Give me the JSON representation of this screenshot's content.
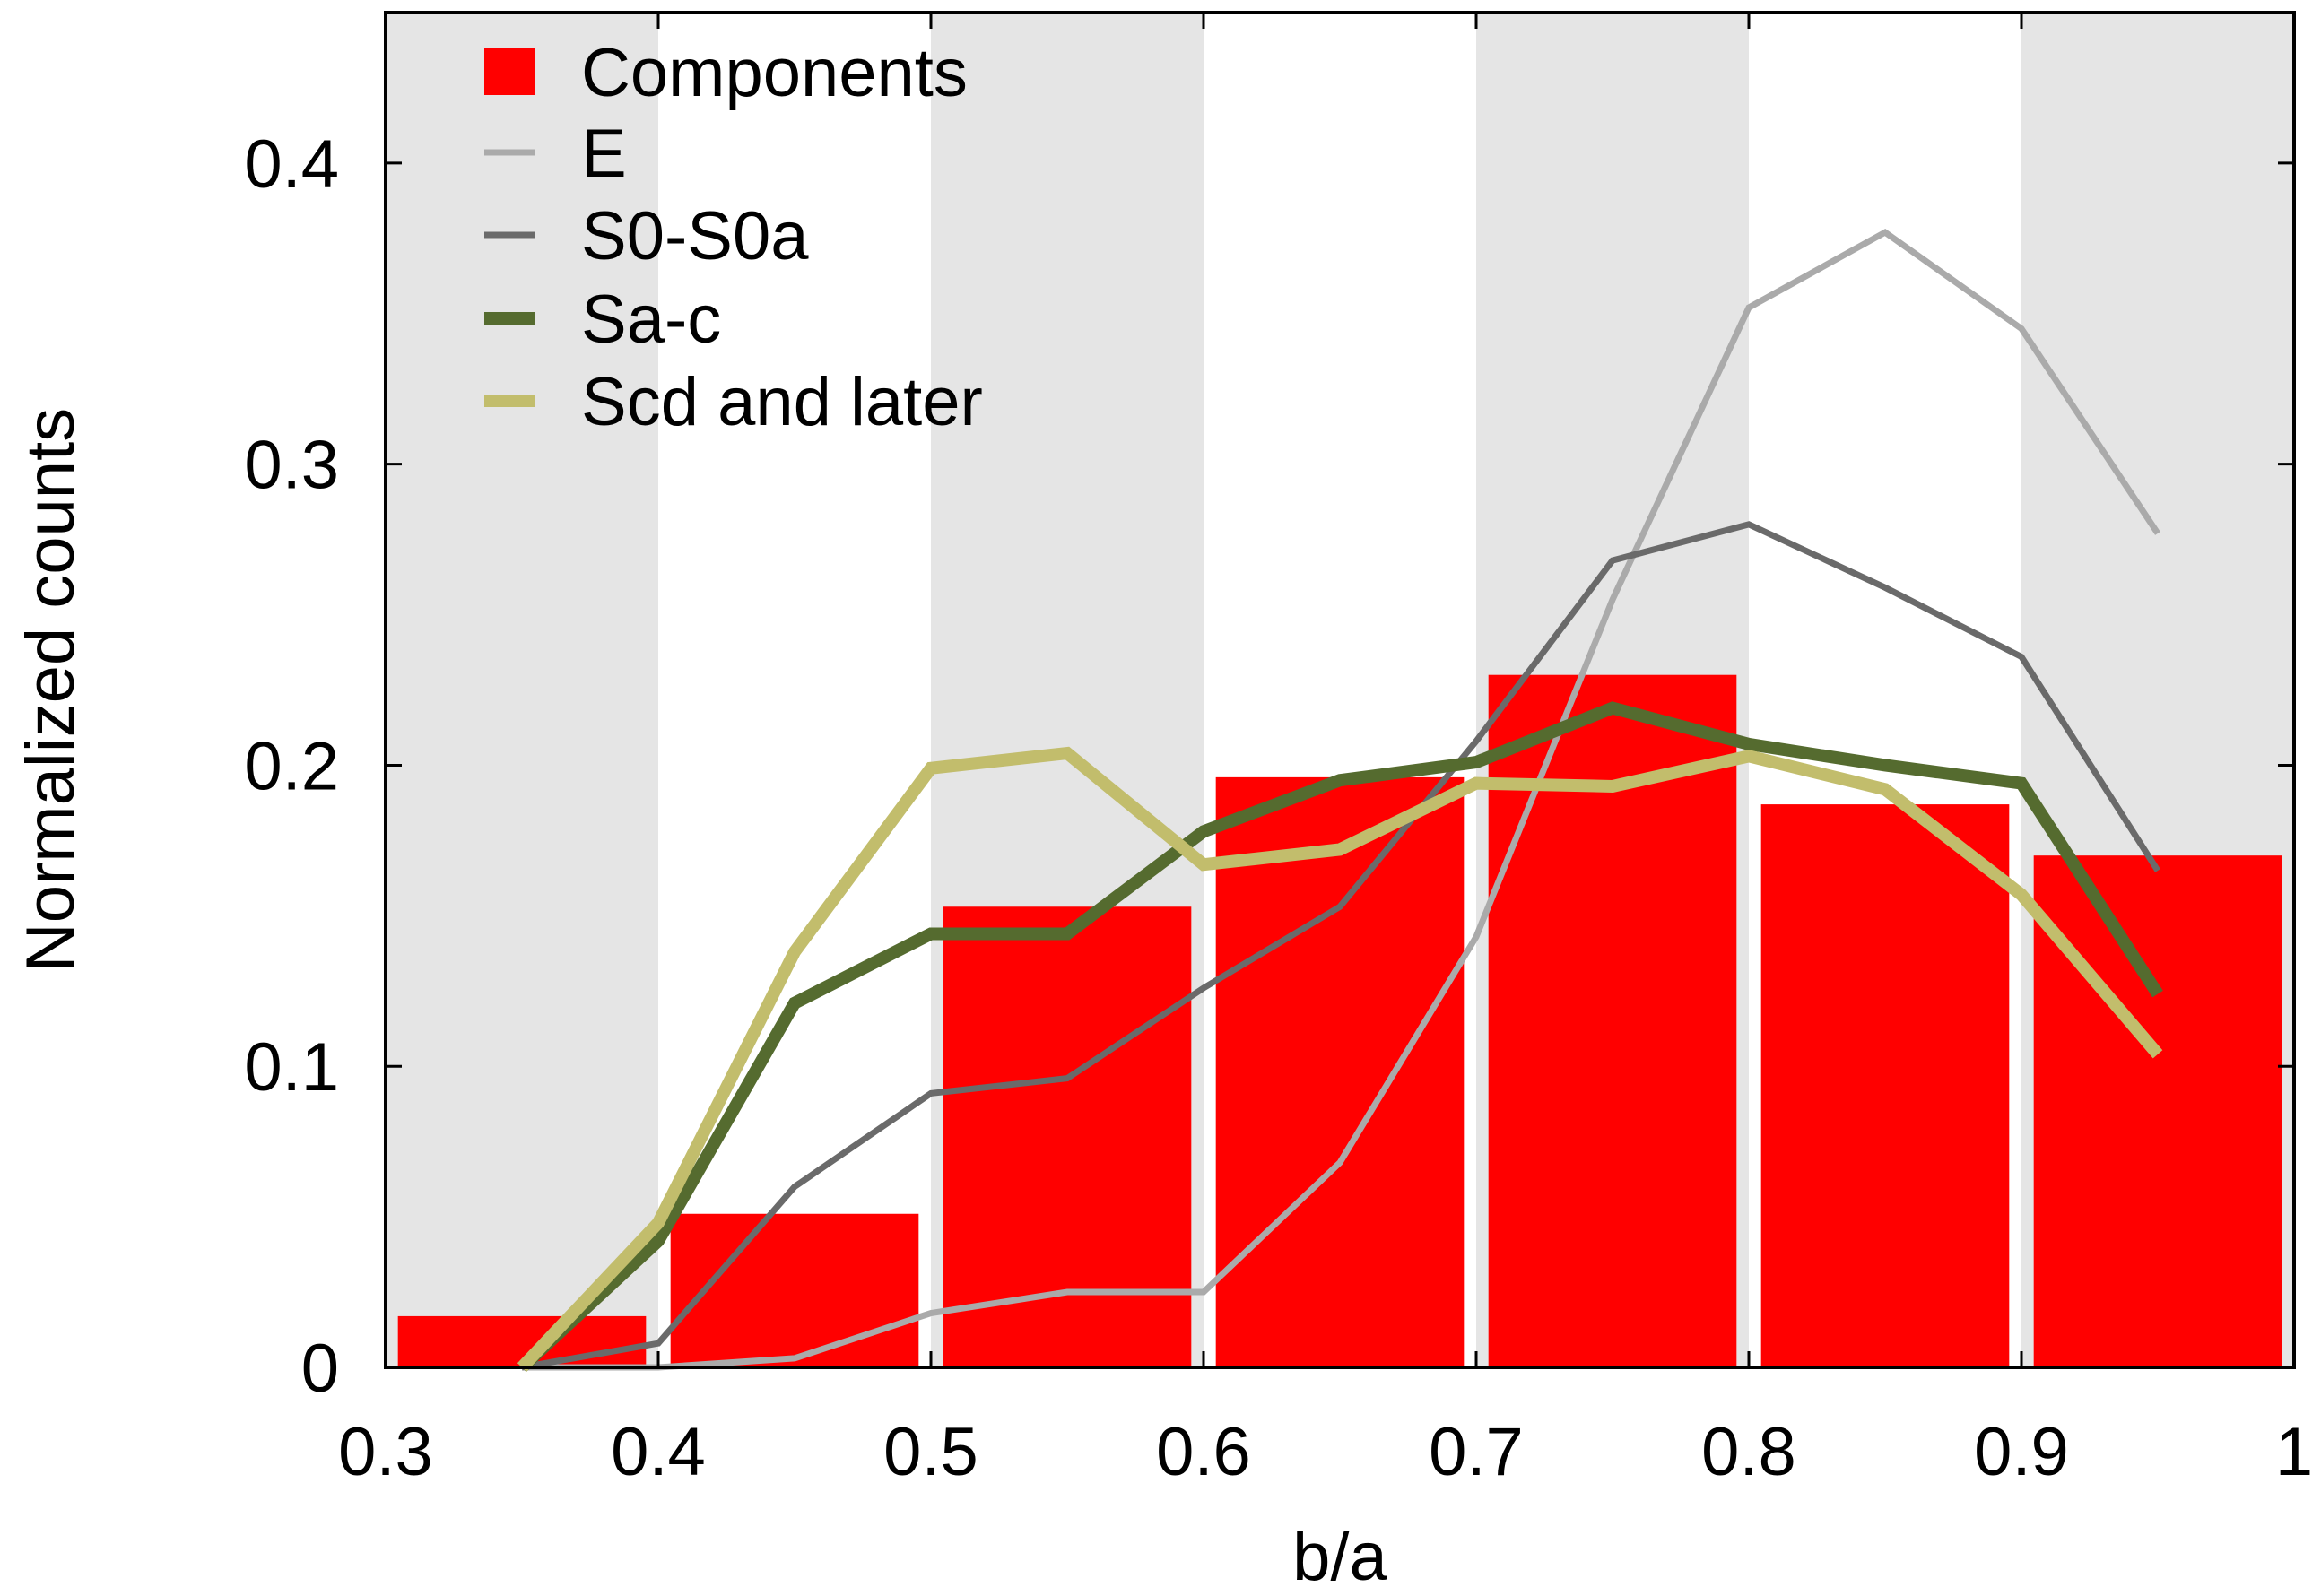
{
  "chart_data": {
    "type": "bar",
    "title": "",
    "xlabel": "b/a",
    "ylabel": "Normalized counts",
    "xlim": [
      0.3,
      1.0
    ],
    "ylim": [
      0,
      0.45
    ],
    "grid": false,
    "background_bands": "alternating grey / white vertical bands, 0.1 wide",
    "legend_position": "top-left",
    "x_ticks": [
      "0.3",
      "0.4",
      "0.5",
      "0.6",
      "0.7",
      "0.8",
      "0.9",
      "1"
    ],
    "y_ticks": [
      "0",
      "0.1",
      "0.2",
      "0.3",
      "0.4"
    ],
    "bars": {
      "name": "Components",
      "color": "#ff0000",
      "bins": [
        [
          0.3,
          0.4
        ],
        [
          0.4,
          0.5
        ],
        [
          0.5,
          0.6
        ],
        [
          0.6,
          0.7
        ],
        [
          0.7,
          0.8
        ],
        [
          0.8,
          0.9
        ],
        [
          0.9,
          1.0
        ]
      ],
      "values": [
        0.017,
        0.051,
        0.153,
        0.196,
        0.23,
        0.187,
        0.17
      ]
    },
    "series": [
      {
        "name": "E",
        "color": "#aaaaaa",
        "line_width": "thin",
        "x": [
          0.35,
          0.4,
          0.45,
          0.5,
          0.55,
          0.6,
          0.65,
          0.7,
          0.75,
          0.8,
          0.85,
          0.9,
          0.95
        ],
        "values": [
          0.0,
          0.0,
          0.003,
          0.018,
          0.025,
          0.025,
          0.068,
          0.143,
          0.255,
          0.352,
          0.377,
          0.345,
          0.277
        ]
      },
      {
        "name": "S0-S0a",
        "color": "#6a6a6a",
        "line_width": "thin",
        "x": [
          0.35,
          0.4,
          0.45,
          0.5,
          0.55,
          0.6,
          0.65,
          0.7,
          0.75,
          0.8,
          0.85,
          0.9,
          0.95
        ],
        "values": [
          0.0,
          0.008,
          0.06,
          0.091,
          0.096,
          0.126,
          0.153,
          0.208,
          0.268,
          0.28,
          0.259,
          0.236,
          0.165
        ]
      },
      {
        "name": "Sa-c",
        "color": "#556b2f",
        "line_width": "thick",
        "x": [
          0.35,
          0.4,
          0.45,
          0.5,
          0.55,
          0.6,
          0.65,
          0.7,
          0.75,
          0.8,
          0.85,
          0.9,
          0.95
        ],
        "values": [
          0.0,
          0.042,
          0.121,
          0.144,
          0.144,
          0.178,
          0.195,
          0.201,
          0.219,
          0.207,
          0.2,
          0.194,
          0.124
        ]
      },
      {
        "name": "Scd and later",
        "color": "#c2bd6c",
        "line_width": "thick",
        "x": [
          0.35,
          0.4,
          0.45,
          0.5,
          0.55,
          0.6,
          0.65,
          0.7,
          0.75,
          0.8,
          0.85,
          0.9,
          0.95
        ],
        "values": [
          0.0,
          0.048,
          0.138,
          0.199,
          0.204,
          0.167,
          0.172,
          0.194,
          0.193,
          0.203,
          0.192,
          0.157,
          0.104
        ]
      }
    ],
    "legend": [
      {
        "label": "Components",
        "marker": "box",
        "color": "#ff0000"
      },
      {
        "label": "E",
        "marker": "line",
        "color": "#aaaaaa"
      },
      {
        "label": "S0-S0a",
        "marker": "line",
        "color": "#6a6a6a"
      },
      {
        "label": "Sa-c",
        "marker": "line",
        "color": "#556b2f"
      },
      {
        "label": "Scd and later",
        "marker": "line",
        "color": "#c2bd6c"
      }
    ]
  }
}
